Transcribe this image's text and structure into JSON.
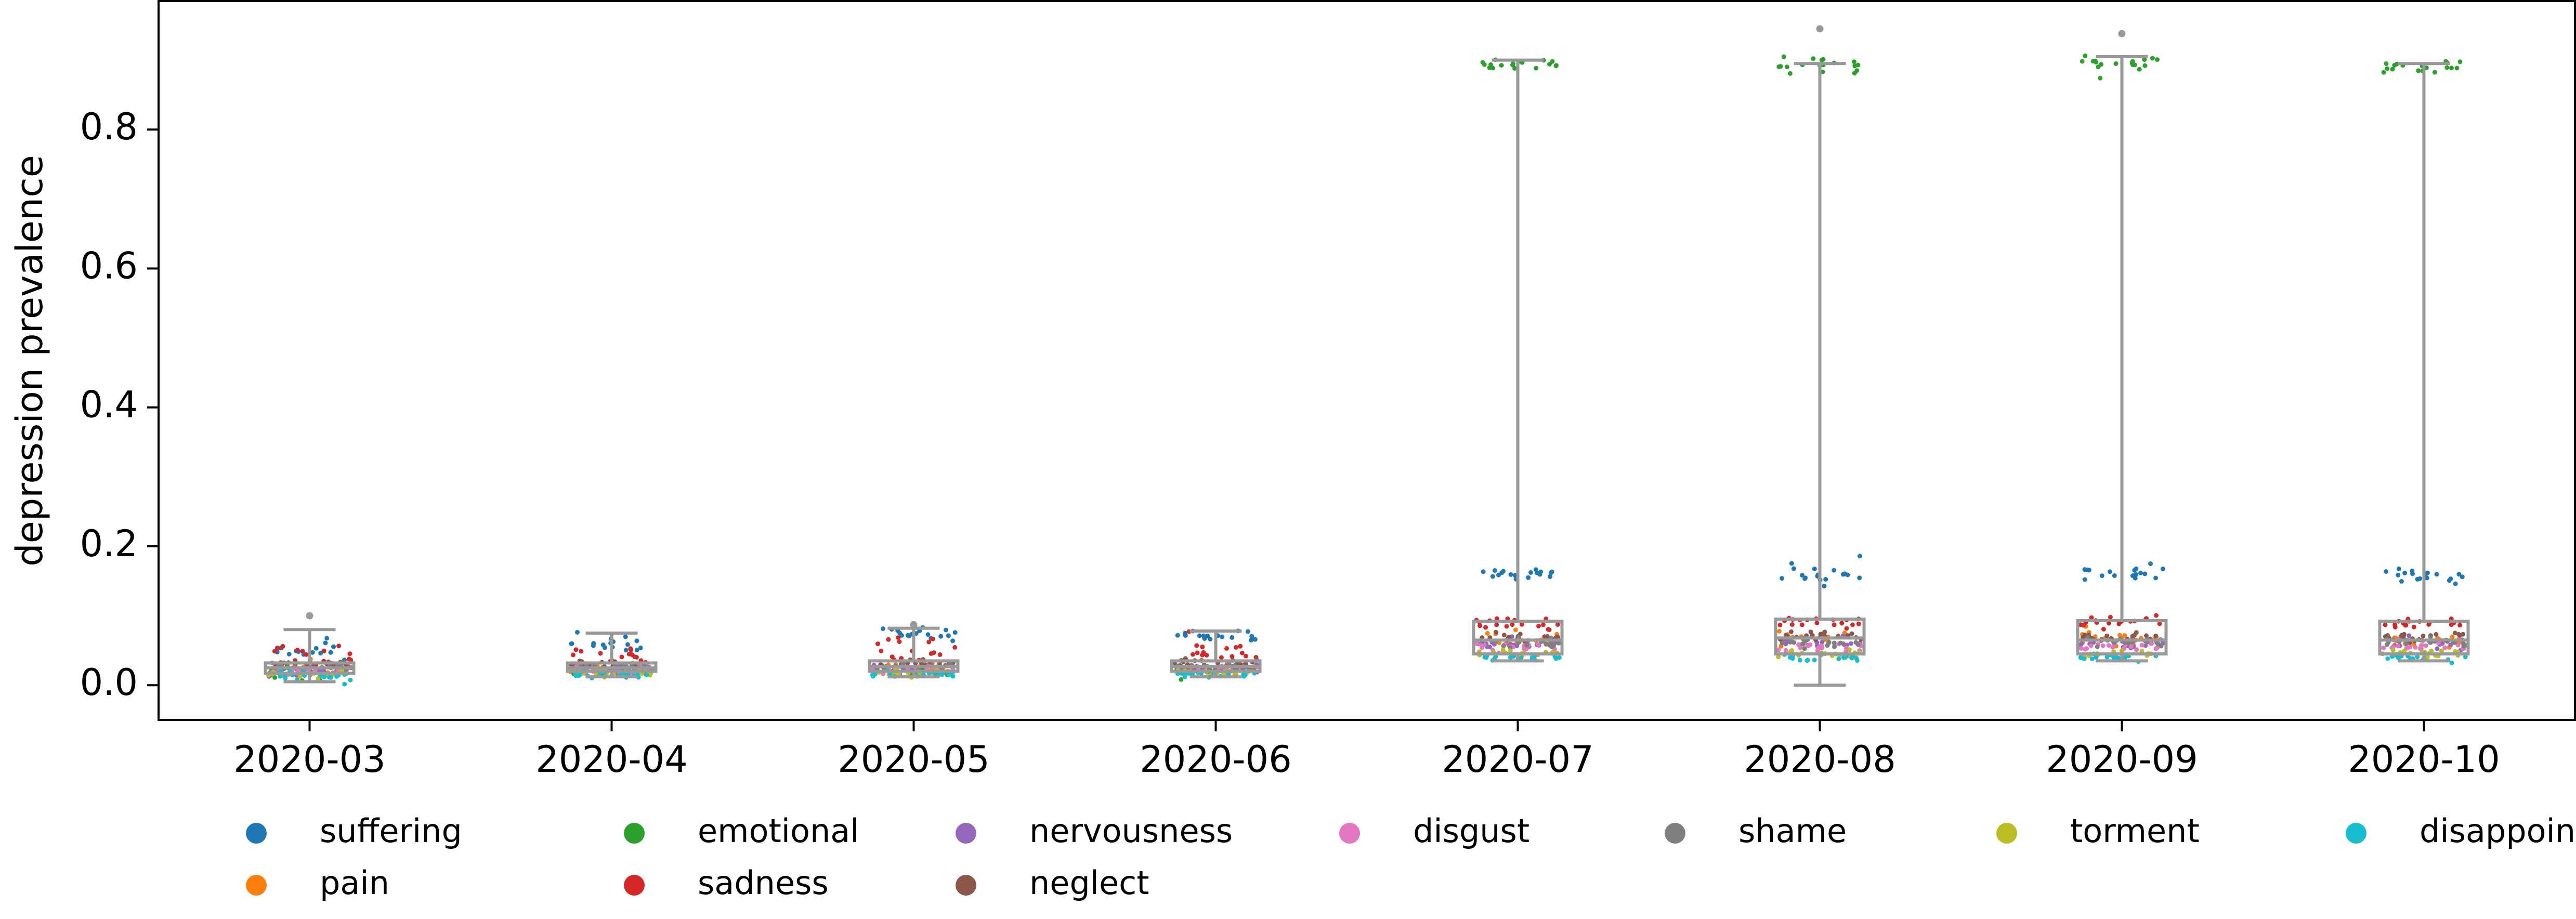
{
  "chart_data": {
    "type": "box_strip",
    "title": "",
    "xlabel": "",
    "ylabel": "depression prevalence",
    "ylim": [
      -0.05,
      0.985
    ],
    "yticks": [
      "0.0",
      "0.2",
      "0.4",
      "0.6",
      "0.8"
    ],
    "ytick_values": [
      0.0,
      0.2,
      0.4,
      0.6,
      0.8
    ],
    "grid": false,
    "legend_position": "bottom",
    "categories": [
      "2020-03",
      "2020-04",
      "2020-05",
      "2020-06",
      "2020-07",
      "2020-08",
      "2020-09",
      "2020-10"
    ],
    "boxes": [
      {
        "category": "2020-03",
        "whisker_low": 0.005,
        "q1": 0.017,
        "median": 0.025,
        "q3": 0.032,
        "whisker_high": 0.08,
        "outliers": [
          0.1
        ]
      },
      {
        "category": "2020-04",
        "whisker_low": 0.012,
        "q1": 0.02,
        "median": 0.025,
        "q3": 0.032,
        "whisker_high": 0.075,
        "outliers": []
      },
      {
        "category": "2020-05",
        "whisker_low": 0.012,
        "q1": 0.02,
        "median": 0.027,
        "q3": 0.035,
        "whisker_high": 0.082,
        "outliers": [
          0.087
        ]
      },
      {
        "category": "2020-06",
        "whisker_low": 0.012,
        "q1": 0.02,
        "median": 0.027,
        "q3": 0.035,
        "whisker_high": 0.078,
        "outliers": []
      },
      {
        "category": "2020-07",
        "whisker_low": 0.035,
        "q1": 0.045,
        "median": 0.065,
        "q3": 0.092,
        "whisker_high": 0.9,
        "outliers": []
      },
      {
        "category": "2020-08",
        "whisker_low": 0.0,
        "q1": 0.045,
        "median": 0.068,
        "q3": 0.095,
        "whisker_high": 0.895,
        "outliers": [
          0.945
        ]
      },
      {
        "category": "2020-09",
        "whisker_low": 0.035,
        "q1": 0.045,
        "median": 0.065,
        "q3": 0.093,
        "whisker_high": 0.905,
        "outliers": [
          0.938
        ]
      },
      {
        "category": "2020-10",
        "whisker_low": 0.035,
        "q1": 0.045,
        "median": 0.065,
        "q3": 0.092,
        "whisker_high": 0.895,
        "outliers": []
      }
    ],
    "series": [
      {
        "name": "suffering",
        "color": "#1f77b4",
        "mean": [
          0.05,
          0.062,
          0.075,
          0.072,
          0.158,
          0.16,
          0.16,
          0.158
        ],
        "spread": [
          0.018,
          0.01,
          0.008,
          0.006,
          0.008,
          0.014,
          0.009,
          0.007
        ]
      },
      {
        "name": "pain",
        "color": "#ff7f0e",
        "mean": [
          0.025,
          0.022,
          0.025,
          0.025,
          0.065,
          0.068,
          0.066,
          0.066
        ],
        "spread": [
          0.007,
          0.006,
          0.006,
          0.005,
          0.007,
          0.008,
          0.007,
          0.007
        ]
      },
      {
        "name": "emotional",
        "color": "#2ca02c",
        "mean": [
          0.018,
          0.02,
          0.02,
          0.02,
          0.895,
          0.893,
          0.895,
          0.89
        ],
        "spread": [
          0.008,
          0.006,
          0.005,
          0.005,
          0.005,
          0.008,
          0.009,
          0.006
        ]
      },
      {
        "name": "sadness",
        "color": "#d62728",
        "mean": [
          0.038,
          0.04,
          0.048,
          0.045,
          0.088,
          0.09,
          0.09,
          0.088
        ],
        "spread": [
          0.015,
          0.015,
          0.018,
          0.014,
          0.007,
          0.008,
          0.007,
          0.007
        ]
      },
      {
        "name": "nervousness",
        "color": "#9467bd",
        "mean": [
          0.022,
          0.025,
          0.025,
          0.025,
          0.06,
          0.06,
          0.06,
          0.06
        ],
        "spread": [
          0.006,
          0.005,
          0.005,
          0.005,
          0.006,
          0.006,
          0.006,
          0.006
        ]
      },
      {
        "name": "neglect",
        "color": "#8c564b",
        "mean": [
          0.028,
          0.028,
          0.03,
          0.03,
          0.07,
          0.07,
          0.07,
          0.07
        ],
        "spread": [
          0.006,
          0.005,
          0.005,
          0.005,
          0.006,
          0.006,
          0.006,
          0.006
        ]
      },
      {
        "name": "disgust",
        "color": "#e377c2",
        "mean": [
          0.02,
          0.022,
          0.022,
          0.022,
          0.055,
          0.055,
          0.055,
          0.055
        ],
        "spread": [
          0.005,
          0.005,
          0.005,
          0.005,
          0.005,
          0.005,
          0.005,
          0.005
        ]
      },
      {
        "name": "shame",
        "color": "#7f7f7f",
        "mean": [
          0.025,
          0.025,
          0.025,
          0.025,
          0.062,
          0.062,
          0.062,
          0.062
        ],
        "spread": [
          0.005,
          0.005,
          0.005,
          0.005,
          0.005,
          0.006,
          0.005,
          0.005
        ]
      },
      {
        "name": "torment",
        "color": "#bcbd22",
        "mean": [
          0.015,
          0.018,
          0.018,
          0.018,
          0.045,
          0.045,
          0.045,
          0.045
        ],
        "spread": [
          0.005,
          0.004,
          0.004,
          0.004,
          0.004,
          0.004,
          0.004,
          0.004
        ]
      },
      {
        "name": "disappointment",
        "color": "#17becf",
        "mean": [
          0.012,
          0.016,
          0.016,
          0.016,
          0.04,
          0.04,
          0.04,
          0.04
        ],
        "spread": [
          0.005,
          0.004,
          0.004,
          0.004,
          0.003,
          0.004,
          0.003,
          0.003
        ]
      }
    ],
    "legend": {
      "row1": [
        "suffering",
        "emotional",
        "nervousness",
        "disgust",
        "shame",
        "torment",
        "disappointment"
      ],
      "row2": [
        "pain",
        "sadness",
        "neglect"
      ]
    },
    "colors": {
      "box": "#999999",
      "axis": "#000000"
    }
  }
}
